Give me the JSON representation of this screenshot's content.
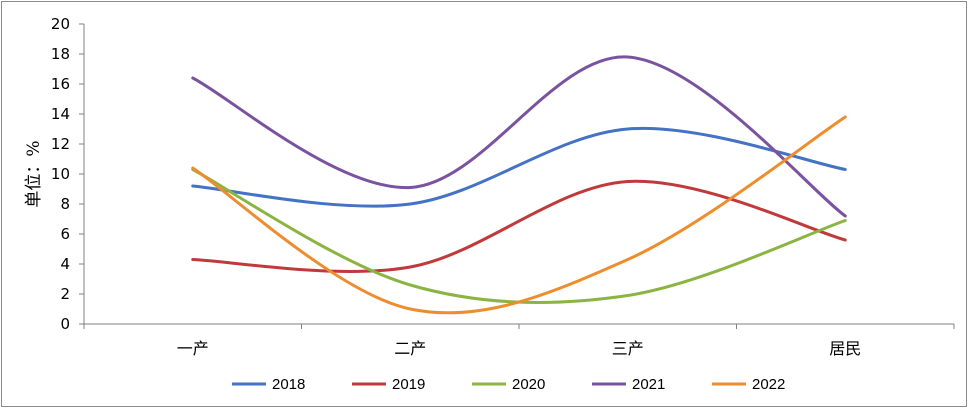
{
  "chart_data": {
    "type": "line",
    "smooth": true,
    "categories": [
      "一产",
      "二产",
      "三产",
      "居民"
    ],
    "ylabel": "单位：%",
    "ylim": [
      0,
      20
    ],
    "yticks": [
      0,
      2,
      4,
      6,
      8,
      10,
      12,
      14,
      16,
      18,
      20
    ],
    "grid": false,
    "legend": "bottom",
    "series": [
      {
        "name": "2018",
        "color": "#4472c4",
        "values": [
          9.2,
          8.0,
          13.0,
          10.3
        ]
      },
      {
        "name": "2019",
        "color": "#c0393b",
        "values": [
          4.3,
          3.8,
          9.5,
          5.6
        ]
      },
      {
        "name": "2020",
        "color": "#8cb443",
        "values": [
          10.3,
          2.6,
          1.9,
          6.9
        ]
      },
      {
        "name": "2021",
        "color": "#7a53a0",
        "values": [
          16.4,
          9.1,
          17.8,
          7.2
        ]
      },
      {
        "name": "2022",
        "color": "#ee8d2d",
        "values": [
          10.4,
          1.0,
          4.3,
          13.8
        ]
      }
    ]
  }
}
